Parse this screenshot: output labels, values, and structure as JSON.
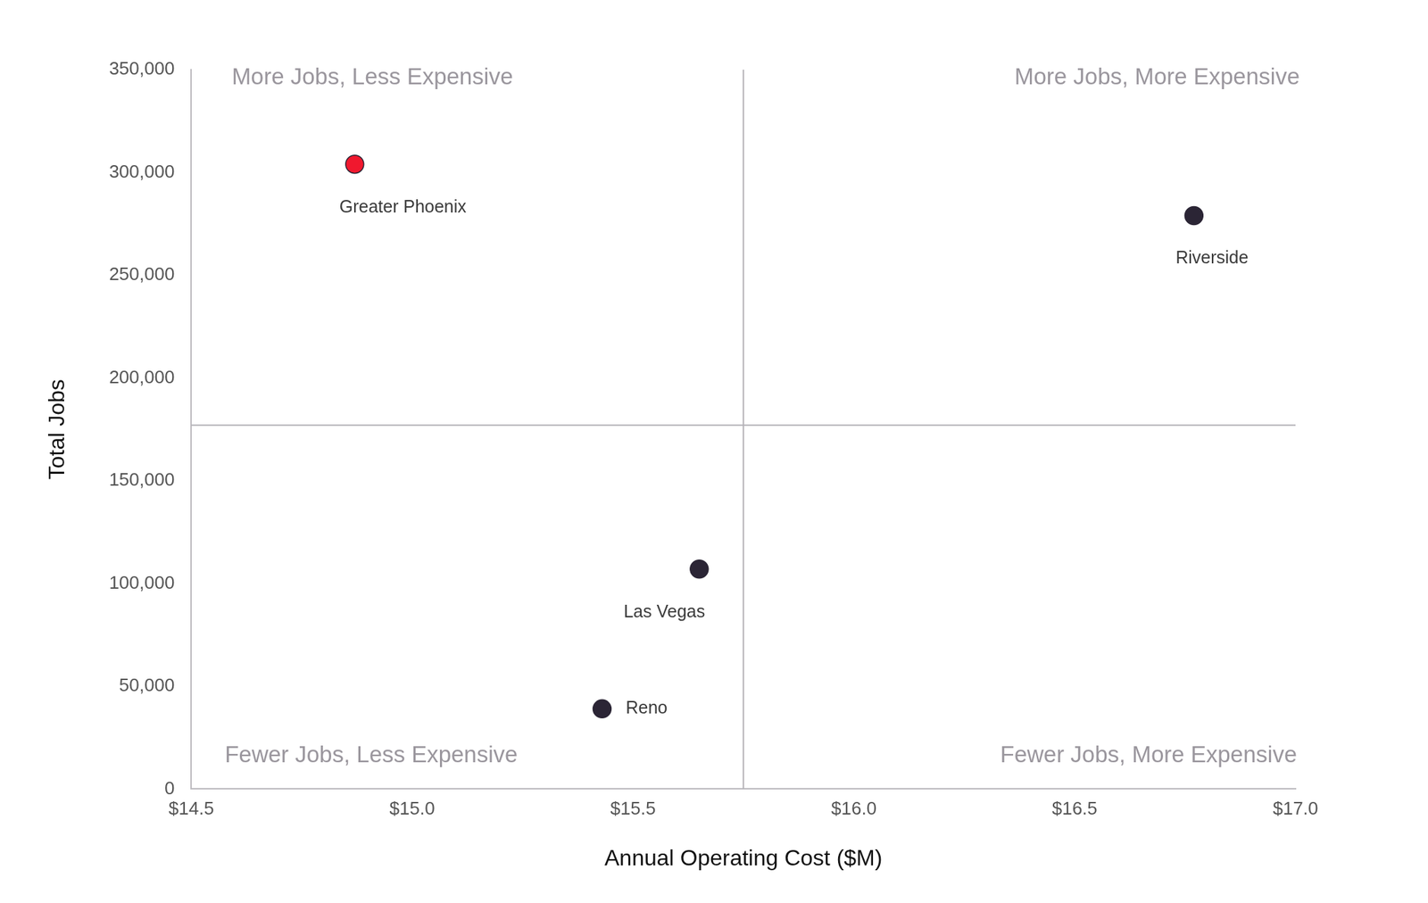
{
  "chart_data": {
    "type": "scatter",
    "xlabel": "Annual Operating Cost ($M)",
    "ylabel": "Total Jobs",
    "labels": [
      "Greater Phoenix",
      "Riverside",
      "Las Vegas",
      "Reno"
    ],
    "x": [
      14.87,
      16.77,
      15.65,
      15.43
    ],
    "values": [
      304000,
      279000,
      107000,
      39000
    ],
    "colors": [
      "#f0182e",
      "#2b2535",
      "#2b2535",
      "#2b2535"
    ],
    "xlim": [
      14.5,
      17.0
    ],
    "xticks": [
      {
        "value": 14.5,
        "label": "$14.5"
      },
      {
        "value": 15.0,
        "label": "$15.0"
      },
      {
        "value": 15.5,
        "label": "$15.5"
      },
      {
        "value": 16.0,
        "label": "$16.0"
      },
      {
        "value": 16.5,
        "label": "$16.5"
      },
      {
        "value": 17.0,
        "label": "$17.0"
      }
    ],
    "ylim": [
      0,
      350000
    ],
    "yticks": [
      0,
      {
        "value": 50000,
        "label": "50,000"
      },
      {
        "value": 100000,
        "label": "100,000"
      },
      {
        "value": 150000,
        "label": "150,000"
      },
      {
        "value": 200000,
        "label": "200,000"
      },
      {
        "value": 250000,
        "label": "250,000"
      },
      {
        "value": 300000,
        "label": "300,000"
      },
      {
        "value": 350000,
        "label": "350,000"
      }
    ],
    "quadrant_lines": {
      "x": 15.75,
      "y": 177000
    },
    "quadrant_labels": {
      "top_left": "More Jobs, Less Expensive",
      "top_right": "More Jobs, More Expensive",
      "bottom_left": "Fewer Jobs, Less Expensive",
      "bottom_right": "Fewer Jobs, More Expensive"
    },
    "grid": false
  }
}
